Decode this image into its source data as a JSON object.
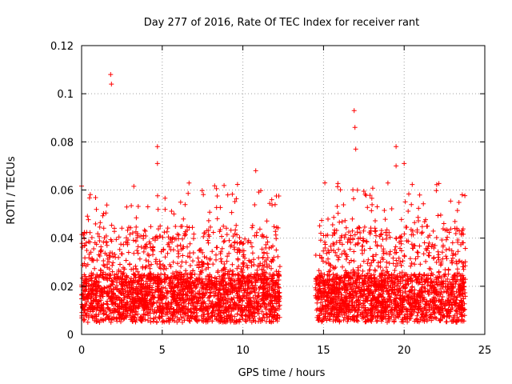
{
  "chart_data": {
    "type": "scatter",
    "title": "Day 277 of 2016, Rate Of TEC Index for receiver rant",
    "xlabel": "GPS time / hours",
    "ylabel": "ROTI / TECUs",
    "xlim": [
      0,
      25
    ],
    "ylim": [
      0,
      0.12
    ],
    "x_ticks": [
      0,
      5,
      10,
      15,
      20,
      25
    ],
    "x_tick_labels": [
      "0",
      "5",
      "10",
      "15",
      "20",
      "25"
    ],
    "y_ticks": [
      0,
      0.02,
      0.04,
      0.06,
      0.08,
      0.1,
      0.12
    ],
    "y_tick_labels": [
      "0",
      "0.02",
      "0.04",
      "0.06",
      "0.08",
      "0.1",
      "0.12"
    ],
    "grid": true,
    "marker": "plus",
    "marker_color": "#ff0000",
    "series": [
      {
        "name": "ROTI",
        "segments": [
          {
            "x_start": 0.0,
            "x_end": 12.3
          },
          {
            "x_start": 14.5,
            "x_end": 23.8
          }
        ],
        "baseline_range": [
          0.005,
          0.025
        ],
        "notable_points": [
          {
            "x": 1.8,
            "y": 0.108
          },
          {
            "x": 1.85,
            "y": 0.104
          },
          {
            "x": 4.7,
            "y": 0.078
          },
          {
            "x": 4.7,
            "y": 0.071
          },
          {
            "x": 10.8,
            "y": 0.068
          },
          {
            "x": 16.9,
            "y": 0.093
          },
          {
            "x": 16.95,
            "y": 0.086
          },
          {
            "x": 17.0,
            "y": 0.077
          },
          {
            "x": 19.5,
            "y": 0.078
          },
          {
            "x": 19.5,
            "y": 0.07
          },
          {
            "x": 20.0,
            "y": 0.071
          },
          {
            "x": 23.6,
            "y": 0.058
          }
        ]
      }
    ]
  }
}
